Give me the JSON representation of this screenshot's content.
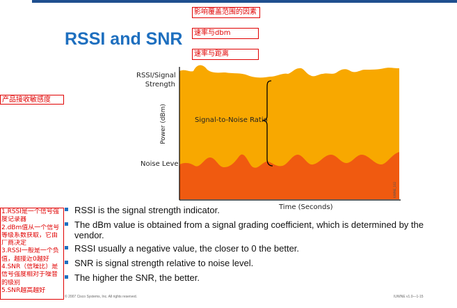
{
  "slide": {
    "title": "RSSI and SNR",
    "annotations": {
      "top1": "影响覆盖范围的因素",
      "top2": "速率与dbm",
      "top3": "速率与距离",
      "left": "产品接收敏感度"
    },
    "side_notes": [
      "1.RSSI是一个信号强",
      "度记录器",
      "2.dBm值从一个信号",
      "等级系数获取，它由",
      "厂商决定",
      "3.RSSI一般是一个负",
      "值，越接近0越好",
      "4.SNR（信噪比）是",
      "信号强度相对于噪音",
      "的级别",
      "5.SNR越高越好"
    ],
    "bullets": [
      "RSSI is the signal strength indicator.",
      "The dBm value is obtained from a signal grading coefficient, which is determined by the vendor.",
      "RSSI usually a negative value, the closer to 0 the better.",
      "SNR is signal strength relative to noise level.",
      "The higher the SNR, the better."
    ],
    "footer": {
      "copyright": "© 2007 Cisco Systems, Inc. All rights reserved.",
      "course": "IUWNE v1.0—1-15"
    }
  },
  "figure": {
    "rssi_label": "RSSI/Signal Strength",
    "rssi_label_line1": "RSSI/Signal",
    "rssi_label_line2": "Strength",
    "noise_label": "Noise Level",
    "snr_label": "Signal-to-Noise Ratio",
    "y_axis_label": "Power (dBm)",
    "x_axis_label": "Time (Seconds)",
    "figure_id": "IUWNE_102",
    "colors": {
      "signal_fill": "#f8a800",
      "noise_fill": "#f05a10",
      "axis": "#000000"
    }
  }
}
